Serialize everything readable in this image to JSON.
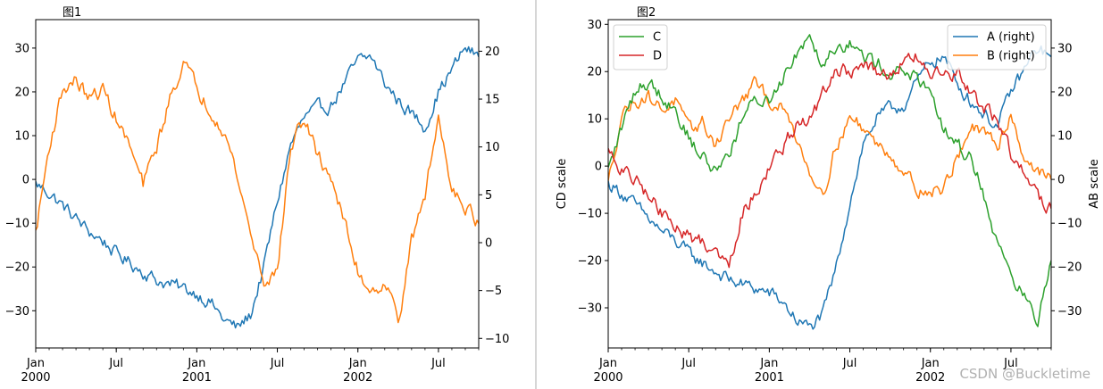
{
  "watermark": "CSDN @Buckletime",
  "colors": {
    "A": "#1f77b4",
    "B": "#ff7f0e",
    "C": "#2ca02c",
    "D": "#d62728"
  },
  "chart_data": [
    {
      "type": "line",
      "title": "图1",
      "xlabel": "",
      "ylabel": "",
      "ylabel_right": "",
      "x_range": [
        "2000-01",
        "2002-10"
      ],
      "x_ticks_major": [
        {
          "label": "Jan",
          "sub": "2000",
          "t": 0
        },
        {
          "label": "Jul",
          "sub": "",
          "t": 6
        },
        {
          "label": "Jan",
          "sub": "2001",
          "t": 12
        },
        {
          "label": "Jul",
          "sub": "",
          "t": 18
        },
        {
          "label": "Jan",
          "sub": "2002",
          "t": 24
        },
        {
          "label": "Jul",
          "sub": "",
          "t": 30
        }
      ],
      "x_months": 33,
      "ylim_left": [
        -38.5,
        36.5
      ],
      "yticks_left": [
        -30,
        -20,
        -10,
        0,
        10,
        20,
        30
      ],
      "ylim_right": [
        -11,
        23.3
      ],
      "yticks_right": [
        -10,
        -5,
        0,
        5,
        10,
        15,
        20
      ],
      "legend": null,
      "series": [
        {
          "name": "A",
          "axis": "left",
          "color": "#1f77b4",
          "x": [
            0,
            1,
            2,
            3,
            4,
            5,
            6,
            7,
            8,
            9,
            10,
            11,
            12,
            13,
            14,
            15,
            16,
            17,
            18,
            19,
            20,
            21,
            22,
            23,
            24,
            25,
            26,
            27,
            28,
            29,
            30,
            31,
            32,
            33
          ],
          "values": [
            -1,
            -3,
            -6,
            -9,
            -12,
            -14,
            -17,
            -19,
            -21,
            -23,
            -24,
            -25,
            -26,
            -28,
            -32,
            -34,
            -31,
            -20,
            -5,
            8,
            14,
            16,
            17,
            22,
            27,
            28,
            22,
            18,
            15,
            12,
            20,
            25,
            30,
            28
          ]
        },
        {
          "name": "B",
          "axis": "right",
          "color": "#ff7f0e",
          "x": [
            0,
            1,
            2,
            3,
            4,
            5,
            6,
            7,
            8,
            9,
            10,
            11,
            12,
            13,
            14,
            15,
            16,
            17,
            18,
            19,
            20,
            21,
            22,
            23,
            24,
            25,
            26,
            27,
            28,
            29,
            30,
            31,
            32,
            33
          ],
          "values": [
            1,
            10,
            16,
            17,
            15,
            16,
            13,
            10,
            6,
            10,
            15,
            19,
            16,
            14,
            12,
            7,
            1,
            -4,
            -3,
            10,
            13,
            9,
            7,
            2,
            -3,
            -5,
            -4,
            -8,
            0,
            5,
            13,
            6,
            4,
            2
          ]
        }
      ]
    },
    {
      "type": "line",
      "title": "图2",
      "xlabel": "",
      "ylabel": "CD scale",
      "ylabel_right": "AB scale",
      "x_range": [
        "2000-01",
        "2002-10"
      ],
      "x_ticks_major": [
        {
          "label": "Jan",
          "sub": "2000",
          "t": 0
        },
        {
          "label": "Jul",
          "sub": "",
          "t": 6
        },
        {
          "label": "Jan",
          "sub": "2001",
          "t": 12
        },
        {
          "label": "Jul",
          "sub": "",
          "t": 18
        },
        {
          "label": "Jan",
          "sub": "2002",
          "t": 24
        },
        {
          "label": "Jul",
          "sub": "",
          "t": 30
        }
      ],
      "x_months": 33,
      "ylim_left": [
        -38.5,
        31
      ],
      "yticks_left": [
        -30,
        -20,
        -10,
        0,
        10,
        20,
        30
      ],
      "ylim_right": [
        -38.5,
        36.5
      ],
      "yticks_right": [
        -30,
        -20,
        -10,
        0,
        10,
        20,
        30
      ],
      "legend": [
        {
          "position": "top-left",
          "entries": [
            {
              "label": "C",
              "color": "#2ca02c"
            },
            {
              "label": "D",
              "color": "#d62728"
            }
          ]
        },
        {
          "position": "top-right",
          "entries": [
            {
              "label": "A (right)",
              "color": "#1f77b4"
            },
            {
              "label": "B (right)",
              "color": "#ff7f0e"
            }
          ]
        }
      ],
      "series": [
        {
          "name": "A (right)",
          "axis": "right",
          "color": "#1f77b4",
          "x": [
            0,
            1,
            2,
            3,
            4,
            5,
            6,
            7,
            8,
            9,
            10,
            11,
            12,
            13,
            14,
            15,
            16,
            17,
            18,
            19,
            20,
            21,
            22,
            23,
            24,
            25,
            26,
            27,
            28,
            29,
            30,
            31,
            32,
            33
          ],
          "values": [
            -1,
            -3,
            -6,
            -9,
            -12,
            -14,
            -17,
            -19,
            -21,
            -23,
            -24,
            -25,
            -26,
            -28,
            -32,
            -34,
            -31,
            -20,
            -5,
            8,
            14,
            16,
            17,
            22,
            27,
            28,
            22,
            18,
            15,
            12,
            20,
            25,
            30,
            28
          ]
        },
        {
          "name": "B (right)",
          "axis": "right",
          "color": "#ff7f0e",
          "x": [
            0,
            1,
            2,
            3,
            4,
            5,
            6,
            7,
            8,
            9,
            10,
            11,
            12,
            13,
            14,
            15,
            16,
            17,
            18,
            19,
            20,
            21,
            22,
            23,
            24,
            25,
            26,
            27,
            28,
            29,
            30,
            31,
            32,
            33
          ],
          "values": [
            -1,
            15,
            18,
            19,
            16,
            18,
            11,
            13,
            8,
            14,
            18,
            22,
            18,
            16,
            10,
            2,
            -3,
            8,
            14,
            12,
            8,
            6,
            2,
            -2,
            -3,
            -2,
            5,
            12,
            10,
            8,
            15,
            5,
            2,
            0
          ]
        },
        {
          "name": "C",
          "axis": "left",
          "color": "#2ca02c",
          "x": [
            0,
            1,
            2,
            3,
            4,
            5,
            6,
            7,
            8,
            9,
            10,
            11,
            12,
            13,
            14,
            15,
            16,
            17,
            18,
            19,
            20,
            21,
            22,
            23,
            24,
            25,
            26,
            27,
            28,
            29,
            30,
            31,
            32,
            33
          ],
          "values": [
            -1,
            8,
            16,
            18,
            15,
            12,
            6,
            2,
            -1,
            3,
            10,
            14,
            14,
            19,
            24,
            28,
            22,
            26,
            26,
            23,
            22,
            20,
            20,
            19,
            14,
            8,
            4,
            2,
            -6,
            -17,
            -22,
            -28,
            -33,
            -20
          ]
        },
        {
          "name": "D",
          "axis": "left",
          "color": "#d62728",
          "x": [
            0,
            1,
            2,
            3,
            4,
            5,
            6,
            7,
            8,
            9,
            10,
            11,
            12,
            13,
            14,
            15,
            16,
            17,
            18,
            19,
            20,
            21,
            22,
            23,
            24,
            25,
            26,
            27,
            28,
            29,
            30,
            31,
            32,
            33
          ],
          "values": [
            3,
            -1,
            -3,
            -6,
            -10,
            -13,
            -15,
            -16,
            -18,
            -20,
            -10,
            -5,
            0,
            4,
            8,
            10,
            15,
            20,
            20,
            22,
            19,
            19,
            22,
            23,
            20,
            18,
            20,
            15,
            12,
            10,
            3,
            -2,
            -7,
            -9
          ]
        }
      ]
    }
  ]
}
